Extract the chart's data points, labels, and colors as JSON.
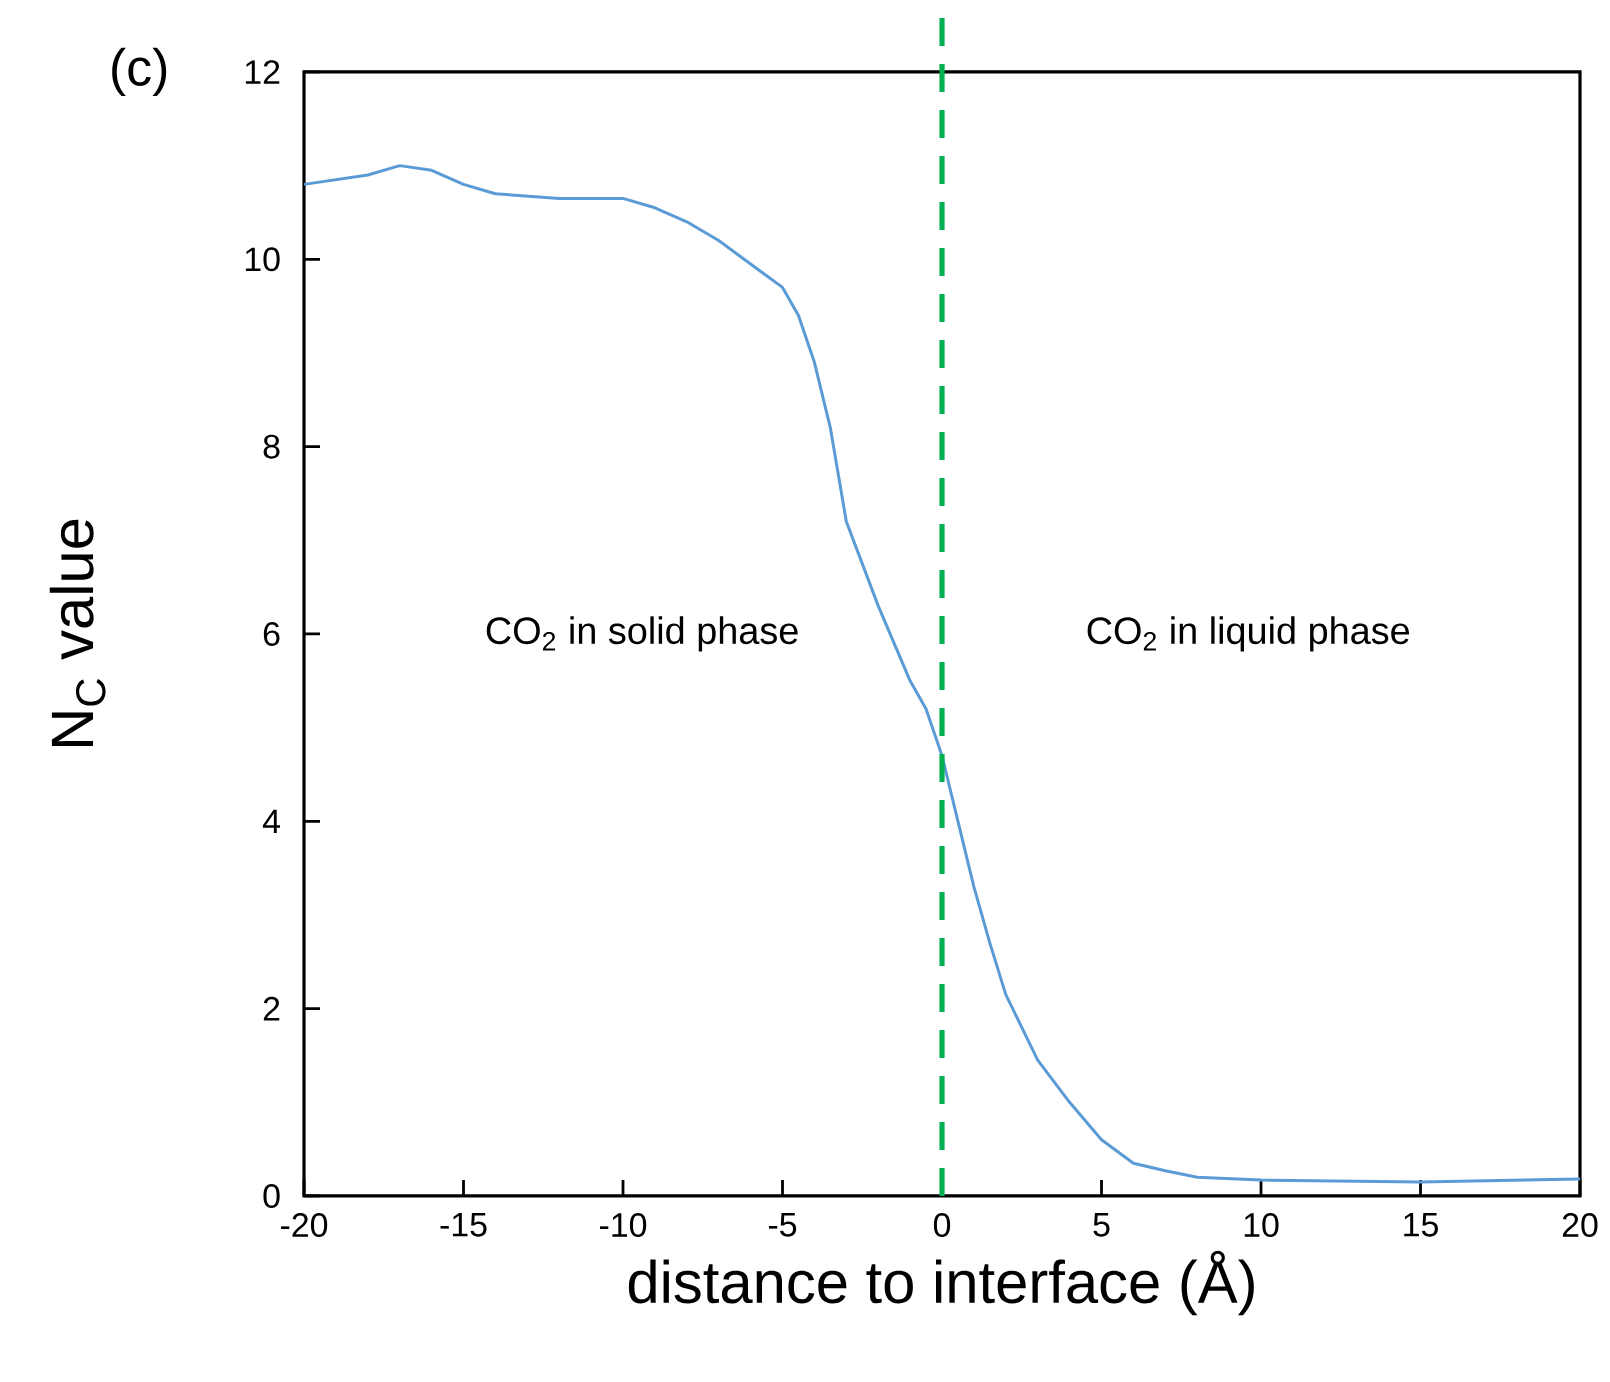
{
  "chart_data": {
    "type": "line",
    "xlabel": "distance to interface (Å)",
    "ylabel": "N$_{C}$ value",
    "xlim": [
      -20,
      20
    ],
    "xticks": [
      -20,
      -15,
      -10,
      -5,
      0,
      5,
      10,
      15,
      20
    ],
    "ylim": [
      0,
      12
    ],
    "yticks": [
      0,
      2,
      4,
      6,
      8,
      10,
      12
    ],
    "x": [
      -20,
      -18,
      -17,
      -16,
      -15,
      -14,
      -12,
      -10,
      -9,
      -8,
      -7,
      -6,
      -5,
      -4.5,
      -4,
      -3.5,
      -3,
      -2,
      -1,
      -0.5,
      0,
      0.5,
      1,
      1.5,
      2,
      3,
      4,
      5,
      6,
      7,
      8,
      10,
      15,
      20
    ],
    "series": [
      {
        "color": "#5b9bd5",
        "values": [
          10.8,
          10.9,
          11.0,
          10.95,
          10.8,
          10.7,
          10.65,
          10.65,
          10.55,
          10.4,
          10.2,
          9.95,
          9.7,
          9.4,
          8.9,
          8.2,
          7.2,
          6.3,
          5.5,
          5.2,
          4.7,
          4.0,
          3.3,
          2.7,
          2.15,
          1.45,
          1.0,
          0.6,
          0.35,
          0.27,
          0.2,
          0.17,
          0.15,
          0.18
        ]
      }
    ],
    "ref_lines": [
      {
        "axis": "x",
        "value": 0,
        "color": "#00b050",
        "line_style": "dashed"
      }
    ],
    "annotations": [
      "(c)",
      "CO$_{2}$ in solid phase",
      "CO$_{2}$ in liquid phase"
    ],
    "grid": false,
    "marker": "none",
    "line_style": "solid"
  }
}
